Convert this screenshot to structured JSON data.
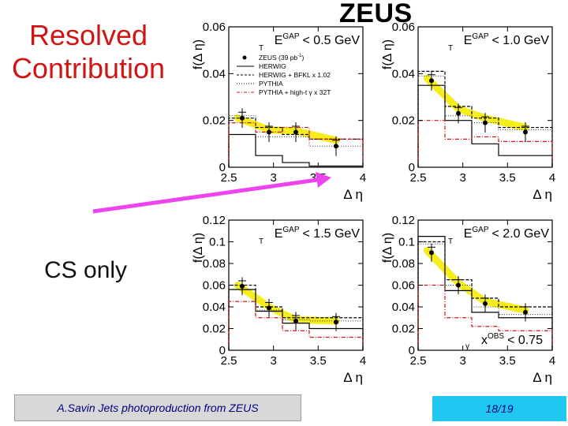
{
  "slide": {
    "title": "ZEUS",
    "side_label_top": [
      "Resolved",
      "Contribution"
    ],
    "side_label_bottom": "CS only",
    "footer_left": "A.Savin Jets photoproduction from ZEUS",
    "footer_right": "18/19",
    "colors": {
      "red": "#d01515",
      "magenta": "#ee44ee",
      "yellow": "#f5ec10",
      "cyan": "#1ec8f0"
    }
  },
  "chart_data": [
    {
      "type": "line",
      "ylabel": "f(Δ η)",
      "xlabel": "Δ η",
      "ylim": [
        0,
        0.06
      ],
      "xlim": [
        2.5,
        4
      ],
      "yticks": [
        0,
        0.02,
        0.04,
        0.06
      ],
      "xticks": [
        2.5,
        3,
        3.5,
        4
      ],
      "cut_label": {
        "main": "E",
        "sub": "T",
        "sup": "GAP",
        "rest": "< 0.5 GeV"
      },
      "legend": [
        {
          "label": "ZEUS (39 pb",
          "sup": "-1",
          "tail": ")",
          "style": "dot"
        },
        {
          "label": "HERWIG",
          "style": "solid"
        },
        {
          "label": "HERWIG + BFKL x 1.02",
          "style": "dashed"
        },
        {
          "label": "PYTHIA",
          "style": "dotted"
        },
        {
          "label": "PYTHIA + high-t γ x 32T",
          "style": "red-dashdot"
        }
      ],
      "data": {
        "x": [
          2.65,
          2.95,
          3.25,
          3.7
        ],
        "y": [
          0.021,
          0.015,
          0.015,
          0.009
        ]
      },
      "band": {
        "x": [
          2.6,
          2.95,
          3.25,
          3.7
        ],
        "y": [
          0.021,
          0.016,
          0.0155,
          0.0115
        ]
      },
      "edges": [
        2.5,
        2.8,
        3.1,
        3.4,
        4.0
      ],
      "herwig": [
        0.014,
        0.005,
        0.002,
        0.0005
      ],
      "bfkl": [
        0.021,
        0.017,
        0.014,
        0.012
      ],
      "pythia": [
        0.022,
        0.013,
        0.013,
        0.009
      ],
      "pythia_hight": [
        0.019,
        0.015,
        0.017,
        0.012
      ]
    },
    {
      "type": "line",
      "ylabel": "f(Δ η)",
      "xlabel": "Δ η",
      "ylim": [
        0,
        0.06
      ],
      "xlim": [
        2.5,
        4
      ],
      "yticks": [
        0,
        0.02,
        0.04,
        0.06
      ],
      "xticks": [
        2.5,
        3,
        3.5,
        4
      ],
      "cut_label": {
        "main": "E",
        "sub": "T",
        "sup": "GAP",
        "rest": "< 1.0 GeV"
      },
      "data": {
        "x": [
          2.65,
          2.95,
          3.25,
          3.7
        ],
        "y": [
          0.037,
          0.023,
          0.019,
          0.015
        ]
      },
      "band": {
        "x": [
          2.6,
          2.95,
          3.25,
          3.7
        ],
        "y": [
          0.038,
          0.025,
          0.021,
          0.017
        ]
      },
      "edges": [
        2.5,
        2.8,
        3.1,
        3.4,
        4.0
      ],
      "herwig": [
        0.035,
        0.02,
        0.01,
        0.005
      ],
      "bfkl": [
        0.041,
        0.026,
        0.021,
        0.017
      ],
      "pythia": [
        0.039,
        0.022,
        0.019,
        0.016
      ],
      "pythia_hight": [
        0.02,
        0.012,
        0.013,
        0.011
      ]
    },
    {
      "type": "line",
      "ylabel": "f(Δ η)",
      "xlabel": "Δ η",
      "ylim": [
        0,
        0.12
      ],
      "xlim": [
        2.5,
        4
      ],
      "yticks": [
        0,
        0.02,
        0.04,
        0.06,
        0.08,
        0.1,
        0.12
      ],
      "xticks": [
        2.5,
        3,
        3.5,
        4
      ],
      "cut_label": {
        "main": "E",
        "sub": "T",
        "sup": "GAP",
        "rest": "< 1.5 GeV"
      },
      "data": {
        "x": [
          2.65,
          2.95,
          3.25,
          3.7
        ],
        "y": [
          0.059,
          0.039,
          0.027,
          0.026
        ]
      },
      "band": {
        "x": [
          2.6,
          2.95,
          3.25,
          3.7
        ],
        "y": [
          0.06,
          0.04,
          0.028,
          0.027
        ]
      },
      "edges": [
        2.5,
        2.8,
        3.1,
        3.4,
        4.0
      ],
      "herwig": [
        0.056,
        0.036,
        0.025,
        0.02
      ],
      "bfkl": [
        0.06,
        0.04,
        0.03,
        0.03
      ],
      "pythia": [
        0.06,
        0.037,
        0.028,
        0.027
      ],
      "pythia_hight": [
        0.045,
        0.03,
        0.018,
        0.012
      ]
    },
    {
      "type": "line",
      "ylabel": "f(Δ η)",
      "xlabel": "Δ η",
      "ylim": [
        0,
        0.12
      ],
      "xlim": [
        2.5,
        4
      ],
      "yticks": [
        0,
        0.02,
        0.04,
        0.06,
        0.08,
        0.1,
        0.12
      ],
      "xticks": [
        2.5,
        3,
        3.5,
        4
      ],
      "cut_label": {
        "main": "E",
        "sub": "T",
        "sup": "GAP",
        "rest": "< 2.0 GeV"
      },
      "extra_label": {
        "main": "x",
        "sub": "γ",
        "sup": "OBS",
        "rest": "< 0.75"
      },
      "data": {
        "x": [
          2.65,
          2.95,
          3.25,
          3.7
        ],
        "y": [
          0.09,
          0.06,
          0.043,
          0.035
        ]
      },
      "band": {
        "x": [
          2.6,
          2.95,
          3.25,
          3.7
        ],
        "y": [
          0.092,
          0.062,
          0.045,
          0.037
        ]
      },
      "edges": [
        2.5,
        2.8,
        3.1,
        3.4,
        4.0
      ],
      "herwig": [
        0.105,
        0.055,
        0.035,
        0.03
      ],
      "bfkl": [
        0.1,
        0.065,
        0.048,
        0.04
      ],
      "pythia": [
        0.098,
        0.06,
        0.04,
        0.033
      ],
      "pythia_hight": [
        0.06,
        0.03,
        0.022,
        0.018
      ]
    }
  ]
}
